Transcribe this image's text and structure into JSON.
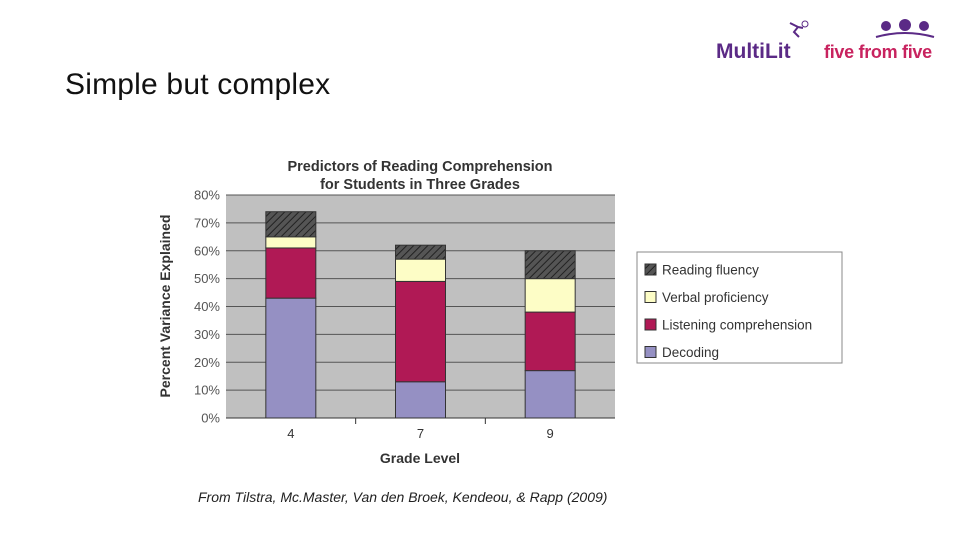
{
  "slide": {
    "title": "Simple but complex",
    "caption": "From Tilstra, Mc.Master, Van den Broek, Kendeou, & Rapp (2009)"
  },
  "logos": {
    "multilit": "MultiLit",
    "multilit_color": "#5b2a86",
    "five_from_five": "five from five",
    "five_color": "#c8235f"
  },
  "colors": {
    "plot_bg": "#c0c0c0",
    "decoding": "#9590c3",
    "listening": "#b01955",
    "verbal": "#fdfdc6",
    "fluency": "#4a4a4a"
  },
  "chart_data": {
    "type": "bar",
    "stacked": true,
    "title": "Predictors of Reading Comprehension",
    "subtitle": "for Students in Three Grades",
    "xlabel": "Grade Level",
    "ylabel": "Percent Variance Explained",
    "categories": [
      "4",
      "7",
      "9"
    ],
    "ylim": [
      0,
      80
    ],
    "yticks": [
      "0%",
      "10%",
      "20%",
      "30%",
      "40%",
      "50%",
      "60%",
      "70%",
      "80%"
    ],
    "grid": true,
    "legend_position": "right",
    "series": [
      {
        "name": "Decoding",
        "color_key": "decoding",
        "values": [
          43,
          13,
          17
        ]
      },
      {
        "name": "Listening comprehension",
        "color_key": "listening",
        "values": [
          18,
          36,
          21
        ]
      },
      {
        "name": "Verbal proficiency",
        "color_key": "verbal",
        "values": [
          4,
          8,
          12
        ]
      },
      {
        "name": "Reading fluency",
        "color_key": "fluency",
        "values": [
          9,
          5,
          10
        ]
      }
    ],
    "legend_order": [
      "Reading fluency",
      "Verbal proficiency",
      "Listening comprehension",
      "Decoding"
    ]
  }
}
